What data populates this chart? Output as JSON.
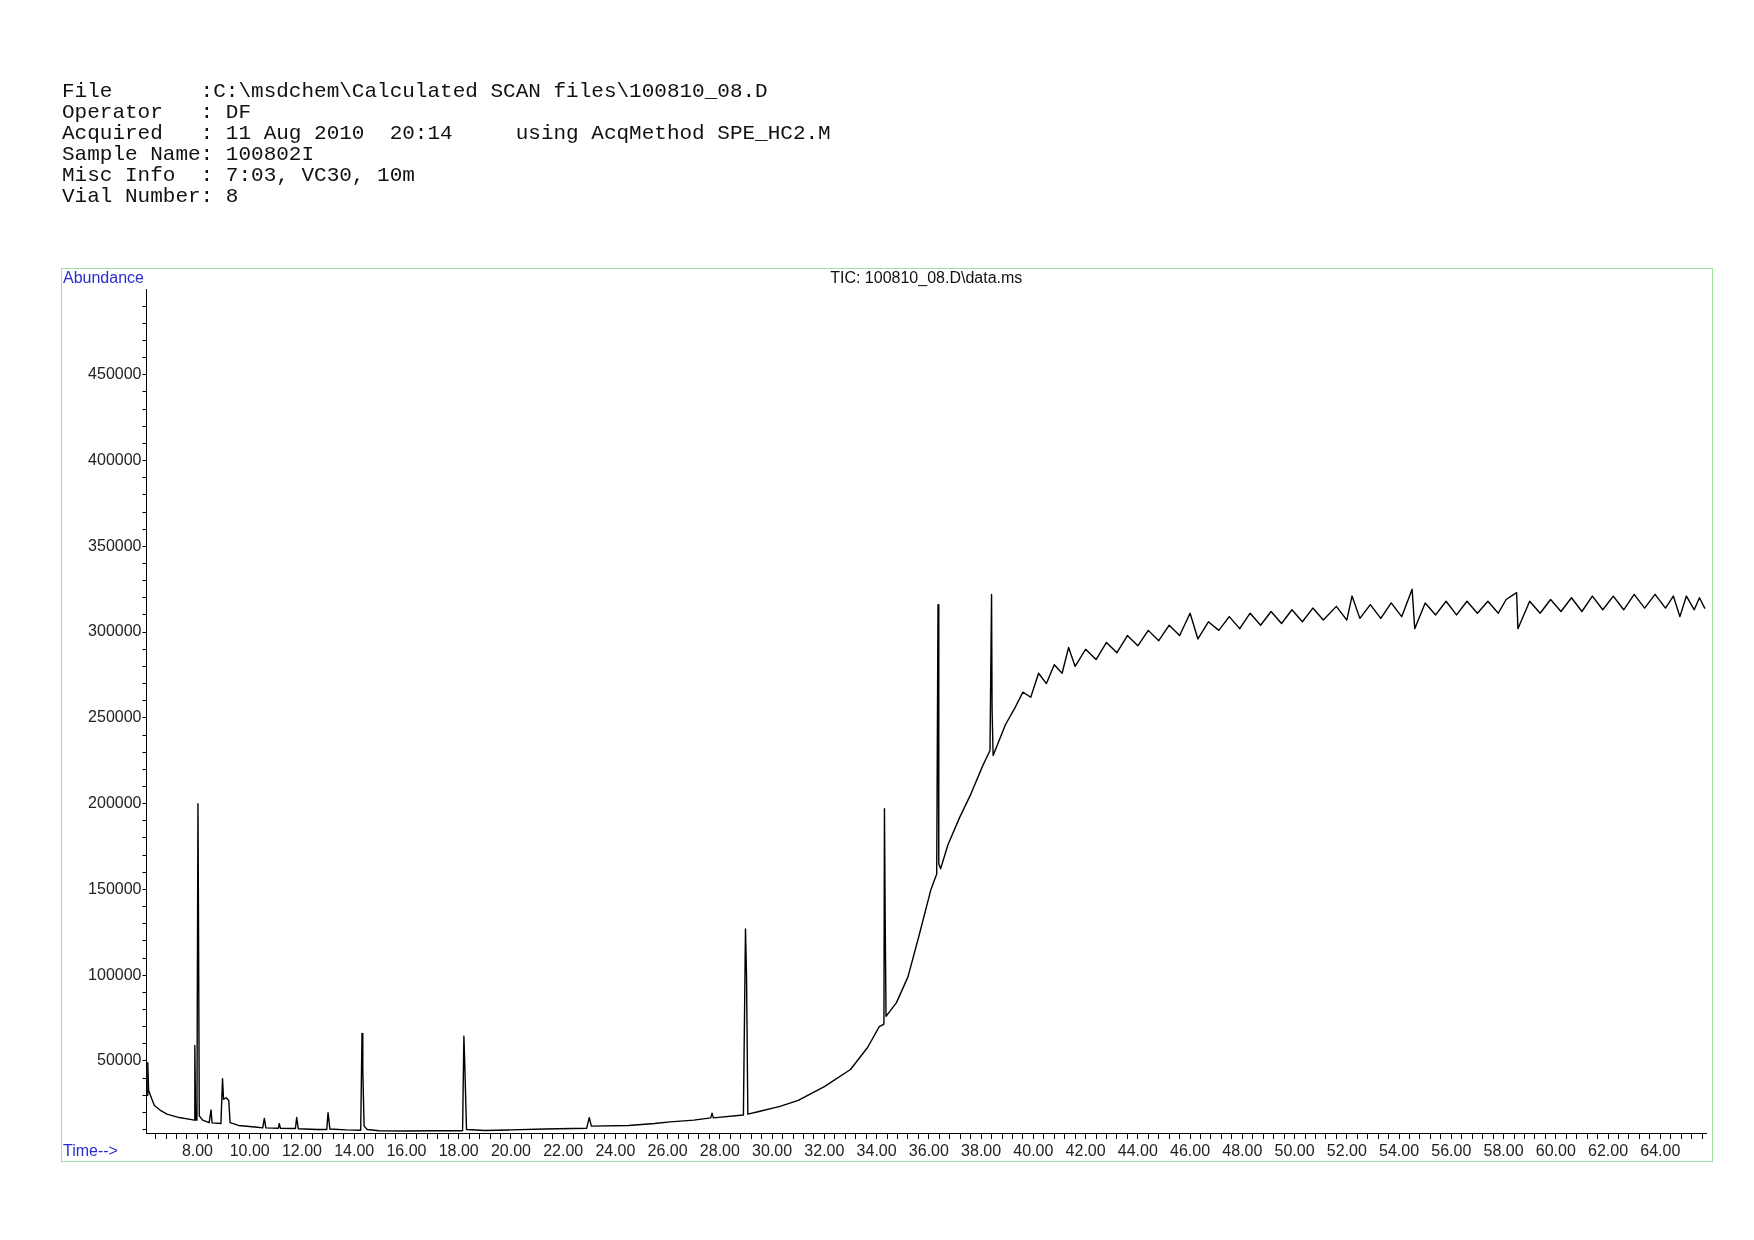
{
  "chart_data": {
    "type": "line",
    "title": "TIC: 100810_08.D\\data.ms",
    "xlabel": "Time-->",
    "ylabel": "Abundance",
    "annotations": [
      "File       :C:\\msdchem\\Calculated SCAN files\\100810_08.D",
      "Operator   : DF",
      "Acquired   : 11 Aug 2010  20:14     using AcqMethod SPE_HC2.M",
      "Sample Name: 100802I",
      "Misc Info  : 7:03, VC30, 10m",
      "Vial Number: 8"
    ],
    "x": [
      6.07,
      6.1,
      6.13,
      6.2,
      6.35,
      6.6,
      6.83,
      7.3,
      7.78,
      7.87,
      7.9,
      7.93,
      7.98,
      8.02,
      8.04,
      8.07,
      8.2,
      8.45,
      8.52,
      8.56,
      8.9,
      8.96,
      9.0,
      9.1,
      9.2,
      9.25,
      9.57,
      10.2,
      10.5,
      10.56,
      10.62,
      11.1,
      11.13,
      11.18,
      11.75,
      11.8,
      11.86,
      12.6,
      12.95,
      13.0,
      13.07,
      13.7,
      14.25,
      14.3,
      14.33,
      14.38,
      14.5,
      14.95,
      16.0,
      17.0,
      18.15,
      18.2,
      18.23,
      18.3,
      19.0,
      20.0,
      21.3,
      22.9,
      23.0,
      23.08,
      24.5,
      25.5,
      26.1,
      27.0,
      27.65,
      27.7,
      27.75,
      28.9,
      28.98,
      29.02,
      29.07,
      29.5,
      30.3,
      31.0,
      32.0,
      33.0,
      33.66,
      34.1,
      34.28,
      34.3,
      34.33,
      34.36,
      34.76,
      35.2,
      35.64,
      36.08,
      36.3,
      36.35,
      36.38,
      36.45,
      36.73,
      37.18,
      37.62,
      38.06,
      38.34,
      38.4,
      38.42,
      38.46,
      38.93,
      39.3,
      39.6,
      39.9,
      40.2,
      40.5,
      40.8,
      41.1,
      41.35,
      41.6,
      42.0,
      42.4,
      42.8,
      43.2,
      43.6,
      44.0,
      44.4,
      44.8,
      45.2,
      45.6,
      46.0,
      46.3,
      46.7,
      47.1,
      47.5,
      47.9,
      48.3,
      48.7,
      49.1,
      49.5,
      49.9,
      50.3,
      50.7,
      51.1,
      51.6,
      52.0,
      52.2,
      52.5,
      52.9,
      53.3,
      53.7,
      54.1,
      54.5,
      54.6,
      55.0,
      55.4,
      55.8,
      56.2,
      56.6,
      57.0,
      57.4,
      57.8,
      58.1,
      58.5,
      58.55,
      59.0,
      59.4,
      59.8,
      60.2,
      60.6,
      61.0,
      61.4,
      61.8,
      62.2,
      62.6,
      63.0,
      63.4,
      63.8,
      64.2,
      64.5,
      64.75,
      65.0,
      65.3,
      65.5,
      65.7
    ],
    "values": [
      30000,
      49000,
      33000,
      30000,
      24000,
      21000,
      19000,
      17000,
      15800,
      15500,
      59000,
      15500,
      15500,
      200000,
      135000,
      18000,
      15500,
      14000,
      21500,
      13900,
      13500,
      39700,
      27700,
      28500,
      27000,
      14000,
      12400,
      11500,
      11000,
      16500,
      11000,
      10800,
      13500,
      10800,
      10600,
      17000,
      10500,
      10000,
      10000,
      19900,
      10300,
      9800,
      9600,
      66000,
      45000,
      12000,
      10000,
      9300,
      9200,
      9300,
      9300,
      64500,
      50000,
      10000,
      9500,
      9800,
      10300,
      10800,
      17000,
      12000,
      12400,
      13500,
      14500,
      15500,
      16800,
      19500,
      16800,
      18500,
      127000,
      100000,
      19000,
      20500,
      23500,
      27000,
      35000,
      45000,
      58000,
      70000,
      71500,
      197000,
      129000,
      76000,
      84000,
      99000,
      124000,
      150000,
      159000,
      316000,
      165000,
      162000,
      176000,
      192000,
      206000,
      222000,
      231000,
      322000,
      255000,
      228000,
      246000,
      256000,
      265000,
      262000,
      276000,
      270000,
      281000,
      276000,
      291000,
      280000,
      290000,
      284000,
      294000,
      288000,
      298000,
      292000,
      301000,
      295000,
      304000,
      298000,
      311000,
      296000,
      306000,
      301000,
      309000,
      302000,
      311000,
      304000,
      312000,
      305000,
      313000,
      306000,
      314000,
      307000,
      315000,
      307000,
      321000,
      308000,
      316000,
      308000,
      317000,
      309000,
      325000,
      302000,
      317000,
      310000,
      318000,
      310000,
      318000,
      311000,
      318000,
      311000,
      319000,
      323000,
      302000,
      318000,
      311000,
      319000,
      312000,
      320000,
      312000,
      321000,
      313000,
      321000,
      313000,
      322000,
      314000,
      322000,
      314000,
      321000,
      309000,
      321000,
      313000,
      320000,
      314000
    ],
    "color": "#000000",
    "xlim": [
      6.05,
      65.75
    ],
    "ylim": [
      8000,
      500000
    ],
    "xticks": [
      {
        "value": 6.4,
        "label": null
      },
      {
        "value": 6.8,
        "label": null
      },
      {
        "value": 7.2,
        "label": null
      },
      {
        "value": 7.6,
        "label": null
      },
      {
        "value": 8,
        "label": "8.00"
      },
      {
        "value": 8.4,
        "label": null
      },
      {
        "value": 8.8,
        "label": null
      },
      {
        "value": 9.2,
        "label": null
      },
      {
        "value": 9.6,
        "label": null
      },
      {
        "value": 10,
        "label": "10.00"
      },
      {
        "value": 10.4,
        "label": null
      },
      {
        "value": 10.8,
        "label": null
      },
      {
        "value": 11.2,
        "label": null
      },
      {
        "value": 11.6,
        "label": null
      },
      {
        "value": 12,
        "label": "12.00"
      },
      {
        "value": 12.4,
        "label": null
      },
      {
        "value": 12.8,
        "label": null
      },
      {
        "value": 13.2,
        "label": null
      },
      {
        "value": 13.6,
        "label": null
      },
      {
        "value": 14,
        "label": "14.00"
      },
      {
        "value": 14.4,
        "label": null
      },
      {
        "value": 14.8,
        "label": null
      },
      {
        "value": 15.2,
        "label": null
      },
      {
        "value": 15.6,
        "label": null
      },
      {
        "value": 16,
        "label": "16.00"
      },
      {
        "value": 16.4,
        "label": null
      },
      {
        "value": 16.8,
        "label": null
      },
      {
        "value": 17.2,
        "label": null
      },
      {
        "value": 17.6,
        "label": null
      },
      {
        "value": 18,
        "label": "18.00"
      },
      {
        "value": 18.4,
        "label": null
      },
      {
        "value": 18.8,
        "label": null
      },
      {
        "value": 19.2,
        "label": null
      },
      {
        "value": 19.6,
        "label": null
      },
      {
        "value": 20,
        "label": "20.00"
      },
      {
        "value": 20.4,
        "label": null
      },
      {
        "value": 20.8,
        "label": null
      },
      {
        "value": 21.2,
        "label": null
      },
      {
        "value": 21.6,
        "label": null
      },
      {
        "value": 22,
        "label": "22.00"
      },
      {
        "value": 22.4,
        "label": null
      },
      {
        "value": 22.8,
        "label": null
      },
      {
        "value": 23.2,
        "label": null
      },
      {
        "value": 23.6,
        "label": null
      },
      {
        "value": 24,
        "label": "24.00"
      },
      {
        "value": 24.4,
        "label": null
      },
      {
        "value": 24.8,
        "label": null
      },
      {
        "value": 25.2,
        "label": null
      },
      {
        "value": 25.6,
        "label": null
      },
      {
        "value": 26,
        "label": "26.00"
      },
      {
        "value": 26.4,
        "label": null
      },
      {
        "value": 26.8,
        "label": null
      },
      {
        "value": 27.2,
        "label": null
      },
      {
        "value": 27.6,
        "label": null
      },
      {
        "value": 28,
        "label": "28.00"
      },
      {
        "value": 28.4,
        "label": null
      },
      {
        "value": 28.8,
        "label": null
      },
      {
        "value": 29.2,
        "label": null
      },
      {
        "value": 29.6,
        "label": null
      },
      {
        "value": 30,
        "label": "30.00"
      },
      {
        "value": 30.4,
        "label": null
      },
      {
        "value": 30.8,
        "label": null
      },
      {
        "value": 31.2,
        "label": null
      },
      {
        "value": 31.6,
        "label": null
      },
      {
        "value": 32,
        "label": "32.00"
      },
      {
        "value": 32.4,
        "label": null
      },
      {
        "value": 32.8,
        "label": null
      },
      {
        "value": 33.2,
        "label": null
      },
      {
        "value": 33.6,
        "label": null
      },
      {
        "value": 34,
        "label": "34.00"
      },
      {
        "value": 34.4,
        "label": null
      },
      {
        "value": 34.8,
        "label": null
      },
      {
        "value": 35.2,
        "label": null
      },
      {
        "value": 35.6,
        "label": null
      },
      {
        "value": 36,
        "label": "36.00"
      },
      {
        "value": 36.4,
        "label": null
      },
      {
        "value": 36.8,
        "label": null
      },
      {
        "value": 37.2,
        "label": null
      },
      {
        "value": 37.6,
        "label": null
      },
      {
        "value": 38,
        "label": "38.00"
      },
      {
        "value": 38.4,
        "label": null
      },
      {
        "value": 38.8,
        "label": null
      },
      {
        "value": 39.2,
        "label": null
      },
      {
        "value": 39.6,
        "label": null
      },
      {
        "value": 40,
        "label": "40.00"
      },
      {
        "value": 40.4,
        "label": null
      },
      {
        "value": 40.8,
        "label": null
      },
      {
        "value": 41.2,
        "label": null
      },
      {
        "value": 41.6,
        "label": null
      },
      {
        "value": 42,
        "label": "42.00"
      },
      {
        "value": 42.4,
        "label": null
      },
      {
        "value": 42.8,
        "label": null
      },
      {
        "value": 43.2,
        "label": null
      },
      {
        "value": 43.6,
        "label": null
      },
      {
        "value": 44,
        "label": "44.00"
      },
      {
        "value": 44.4,
        "label": null
      },
      {
        "value": 44.8,
        "label": null
      },
      {
        "value": 45.2,
        "label": null
      },
      {
        "value": 45.6,
        "label": null
      },
      {
        "value": 46,
        "label": "46.00"
      },
      {
        "value": 46.4,
        "label": null
      },
      {
        "value": 46.8,
        "label": null
      },
      {
        "value": 47.2,
        "label": null
      },
      {
        "value": 47.6,
        "label": null
      },
      {
        "value": 48,
        "label": "48.00"
      },
      {
        "value": 48.4,
        "label": null
      },
      {
        "value": 48.8,
        "label": null
      },
      {
        "value": 49.2,
        "label": null
      },
      {
        "value": 49.6,
        "label": null
      },
      {
        "value": 50,
        "label": "50.00"
      },
      {
        "value": 50.4,
        "label": null
      },
      {
        "value": 50.8,
        "label": null
      },
      {
        "value": 51.2,
        "label": null
      },
      {
        "value": 51.6,
        "label": null
      },
      {
        "value": 52,
        "label": "52.00"
      },
      {
        "value": 52.4,
        "label": null
      },
      {
        "value": 52.8,
        "label": null
      },
      {
        "value": 53.2,
        "label": null
      },
      {
        "value": 53.6,
        "label": null
      },
      {
        "value": 54,
        "label": "54.00"
      },
      {
        "value": 54.4,
        "label": null
      },
      {
        "value": 54.8,
        "label": null
      },
      {
        "value": 55.2,
        "label": null
      },
      {
        "value": 55.6,
        "label": null
      },
      {
        "value": 56,
        "label": "56.00"
      },
      {
        "value": 56.4,
        "label": null
      },
      {
        "value": 56.8,
        "label": null
      },
      {
        "value": 57.2,
        "label": null
      },
      {
        "value": 57.6,
        "label": null
      },
      {
        "value": 58,
        "label": "58.00"
      },
      {
        "value": 58.4,
        "label": null
      },
      {
        "value": 58.8,
        "label": null
      },
      {
        "value": 59.2,
        "label": null
      },
      {
        "value": 59.6,
        "label": null
      },
      {
        "value": 60,
        "label": "60.00"
      },
      {
        "value": 60.4,
        "label": null
      },
      {
        "value": 60.8,
        "label": null
      },
      {
        "value": 61.2,
        "label": null
      },
      {
        "value": 61.6,
        "label": null
      },
      {
        "value": 62,
        "label": "62.00"
      },
      {
        "value": 62.4,
        "label": null
      },
      {
        "value": 62.8,
        "label": null
      },
      {
        "value": 63.2,
        "label": null
      },
      {
        "value": 63.6,
        "label": null
      },
      {
        "value": 64,
        "label": "64.00"
      },
      {
        "value": 64.4,
        "label": null
      },
      {
        "value": 64.8,
        "label": null
      },
      {
        "value": 65.2,
        "label": null
      },
      {
        "value": 65.6,
        "label": null
      }
    ],
    "yticks": [
      {
        "value": 10000,
        "label": null
      },
      {
        "value": 20000,
        "label": null
      },
      {
        "value": 30000,
        "label": null
      },
      {
        "value": 40000,
        "label": null
      },
      50000,
      {
        "value": 60000,
        "label": null
      },
      {
        "value": 70000,
        "label": null
      },
      {
        "value": 80000,
        "label": null
      },
      {
        "value": 90000,
        "label": null
      },
      100000,
      {
        "value": 110000,
        "label": null
      },
      {
        "value": 120000,
        "label": null
      },
      {
        "value": 130000,
        "label": null
      },
      {
        "value": 140000,
        "label": null
      },
      150000,
      {
        "value": 160000,
        "label": null
      },
      {
        "value": 170000,
        "label": null
      },
      {
        "value": 180000,
        "label": null
      },
      {
        "value": 190000,
        "label": null
      },
      200000,
      {
        "value": 210000,
        "label": null
      },
      {
        "value": 220000,
        "label": null
      },
      {
        "value": 230000,
        "label": null
      },
      {
        "value": 240000,
        "label": null
      },
      250000,
      {
        "value": 260000,
        "label": null
      },
      {
        "value": 270000,
        "label": null
      },
      {
        "value": 280000,
        "label": null
      },
      {
        "value": 290000,
        "label": null
      },
      300000,
      {
        "value": 310000,
        "label": null
      },
      {
        "value": 320000,
        "label": null
      },
      {
        "value": 330000,
        "label": null
      },
      {
        "value": 340000,
        "label": null
      },
      350000,
      {
        "value": 360000,
        "label": null
      },
      {
        "value": 370000,
        "label": null
      },
      {
        "value": 380000,
        "label": null
      },
      {
        "value": 390000,
        "label": null
      },
      400000,
      {
        "value": 410000,
        "label": null
      },
      {
        "value": 420000,
        "label": null
      },
      {
        "value": 430000,
        "label": null
      },
      {
        "value": 440000,
        "label": null
      },
      450000,
      {
        "value": 460000,
        "label": null
      },
      {
        "value": 470000,
        "label": null
      },
      {
        "value": 480000,
        "label": null
      },
      {
        "value": 490000,
        "label": null
      }
    ],
    "grid": false,
    "legend": false,
    "marker": "none",
    "line_style": "solid"
  }
}
